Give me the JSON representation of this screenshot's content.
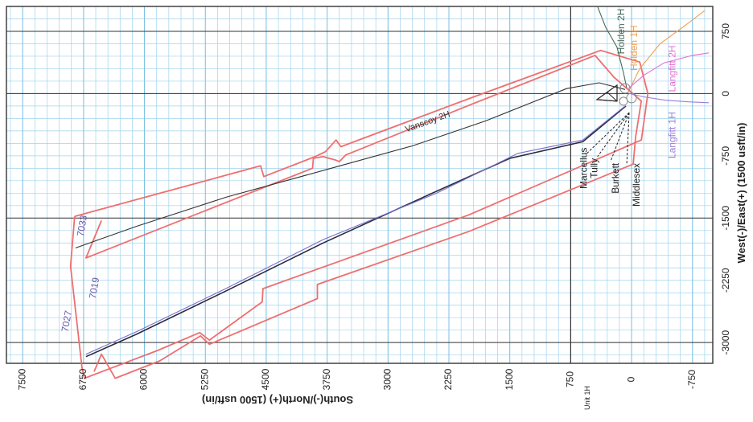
{
  "chart_data": {
    "type": "line",
    "title": "",
    "xlabel": "South(-)/North(+) (1500 usft/in)",
    "ylabel": "West(-)/East(+) (1500 usft/in)",
    "x_direction": "decreasing left-to-right (North on the left)",
    "xlim": [
      -1000,
      7700
    ],
    "ylim": [
      -3250,
      1050
    ],
    "x_ticks": [
      "7500",
      "6750",
      "6000",
      "5250",
      "4500",
      "3750",
      "3000",
      "2250",
      "1500",
      "750",
      "0",
      "-750"
    ],
    "y_ticks": [
      "750",
      "0",
      "-750",
      "-1500",
      "-2250",
      "-3000"
    ],
    "x_tick_values": [
      7500,
      6750,
      6000,
      5250,
      4500,
      3750,
      3000,
      2250,
      1500,
      750,
      0,
      -750
    ],
    "y_tick_values": [
      750,
      0,
      -750,
      -1500,
      -2250,
      -3000
    ],
    "grid": true,
    "pad_label": "Unit 1H",
    "colors": {
      "grid": "#9fd3ee",
      "grid_major": "#333333",
      "setback": "#ee6f6f",
      "vanscoy": "#333333",
      "unit1h": "#2b2b3f",
      "unit1h_offset": "#7b6fcc",
      "holden1h": "#f0a050",
      "holden2h": "#4a6b5a",
      "langfitt1h": "#9a7ed8",
      "langfitt2h": "#e070d0",
      "formation": "#222222"
    },
    "series": [
      {
        "name": "Vanscoy 2H",
        "color_key": "vanscoy",
        "points": [
          [
            80,
            50
          ],
          [
            400,
            130
          ],
          [
            800,
            60
          ],
          [
            1800,
            -330
          ],
          [
            2700,
            -630
          ],
          [
            3700,
            -900
          ],
          [
            5000,
            -1250
          ],
          [
            6100,
            -1600
          ],
          [
            6850,
            -1860
          ]
        ]
      },
      {
        "name": "Unit 1H",
        "color_key": "unit1h",
        "points": [
          [
            70,
            -150
          ],
          [
            600,
            -580
          ],
          [
            1500,
            -780
          ],
          [
            2500,
            -1220
          ],
          [
            3800,
            -1800
          ],
          [
            5000,
            -2380
          ],
          [
            6100,
            -2900
          ],
          [
            6720,
            -3170
          ]
        ]
      },
      {
        "name": "",
        "color_key": "unit1h_offset",
        "points": [
          [
            80,
            -150
          ],
          [
            600,
            -560
          ],
          [
            1400,
            -720
          ],
          [
            2400,
            -1200
          ],
          [
            3800,
            -1760
          ],
          [
            5000,
            -2350
          ],
          [
            6100,
            -2870
          ],
          [
            6720,
            -3140
          ]
        ]
      },
      {
        "name": "Holden 2H",
        "color_key": "holden2h",
        "points": [
          [
            60,
            70
          ],
          [
            100,
            250
          ],
          [
            180,
            560
          ],
          [
            320,
            800
          ],
          [
            420,
            1050
          ]
        ]
      },
      {
        "name": "Holden 1H",
        "color_key": "holden1h",
        "points": [
          [
            20,
            60
          ],
          [
            -100,
            300
          ],
          [
            -350,
            600
          ],
          [
            -700,
            850
          ],
          [
            -900,
            1000
          ]
        ]
      },
      {
        "name": "Langfitt 2H",
        "color_key": "langfitt2h",
        "points": [
          [
            40,
            60
          ],
          [
            -150,
            220
          ],
          [
            -400,
            370
          ],
          [
            -750,
            460
          ],
          [
            -950,
            490
          ]
        ]
      },
      {
        "name": "Langfitt 1H",
        "color_key": "langfitt1h",
        "points": [
          [
            30,
            0
          ],
          [
            -150,
            -40
          ],
          [
            -420,
            -80
          ],
          [
            -700,
            -100
          ],
          [
            -950,
            -110
          ]
        ]
      }
    ],
    "setback_polygons": [
      [
        [
          6530,
          -1530
        ],
        [
          6720,
          -1980
        ],
        [
          3930,
          -900
        ],
        [
          3920,
          -780
        ],
        [
          3800,
          -760
        ],
        [
          3650,
          -800
        ],
        [
          3600,
          -820
        ],
        [
          3520,
          -740
        ],
        [
          2000,
          -140
        ],
        [
          450,
          460
        ],
        [
          220,
          200
        ],
        [
          -120,
          -90
        ],
        [
          -50,
          -520
        ],
        [
          -20,
          -850
        ],
        [
          2000,
          -1660
        ],
        [
          3870,
          -2300
        ],
        [
          3870,
          -2470
        ],
        [
          5200,
          -3020
        ],
        [
          5310,
          -2920
        ],
        [
          5810,
          -3220
        ],
        [
          6360,
          -3430
        ],
        [
          6530,
          -3140
        ],
        [
          6620,
          -3350
        ]
      ],
      [
        [
          6860,
          -1480
        ],
        [
          6910,
          -2080
        ],
        [
          6770,
          -3300
        ],
        [
          6740,
          -3430
        ],
        [
          5850,
          -3100
        ],
        [
          5320,
          -2880
        ],
        [
          5200,
          -2970
        ],
        [
          4550,
          -2510
        ],
        [
          4540,
          -2350
        ],
        [
          2000,
          -1460
        ],
        [
          -120,
          -560
        ],
        [
          -200,
          0
        ],
        [
          -100,
          380
        ],
        [
          380,
          520
        ],
        [
          2000,
          -60
        ],
        [
          3580,
          -640
        ],
        [
          3640,
          -560
        ],
        [
          3770,
          -700
        ],
        [
          3900,
          -760
        ],
        [
          4530,
          -1000
        ],
        [
          4570,
          -870
        ],
        [
          6860,
          -1480
        ]
      ]
    ],
    "annotations": [
      {
        "text": "Vanscoy 2H",
        "x": 2500,
        "y": -370
      },
      {
        "text": "Holden 2H",
        "x": 90,
        "y": 750
      },
      {
        "text": "Holden 1H",
        "x": -70,
        "y": 550
      },
      {
        "text": "Langfitt 2H",
        "x": -540,
        "y": 300
      },
      {
        "text": "Langfitt 1H",
        "x": -540,
        "y": -500
      },
      {
        "text": "Marcellus",
        "x": 550,
        "y": -900
      },
      {
        "text": "Tully",
        "x": 420,
        "y": -900
      },
      {
        "text": "Burkett",
        "x": 160,
        "y": -1020
      },
      {
        "text": "Middlesex",
        "x": -100,
        "y": -1100
      },
      {
        "text": "7033",
        "x": 6730,
        "y": -1600
      },
      {
        "text": "7019",
        "x": 6580,
        "y": -2350
      },
      {
        "text": "7027",
        "x": 6920,
        "y": -2750
      }
    ]
  },
  "labels": {
    "x_axis_title": "South(-)/North(+) (1500 usft/in)",
    "y_axis_title": "West(-)/East(+) (1500 usft/in)",
    "pad_label": "Unit 1H"
  }
}
